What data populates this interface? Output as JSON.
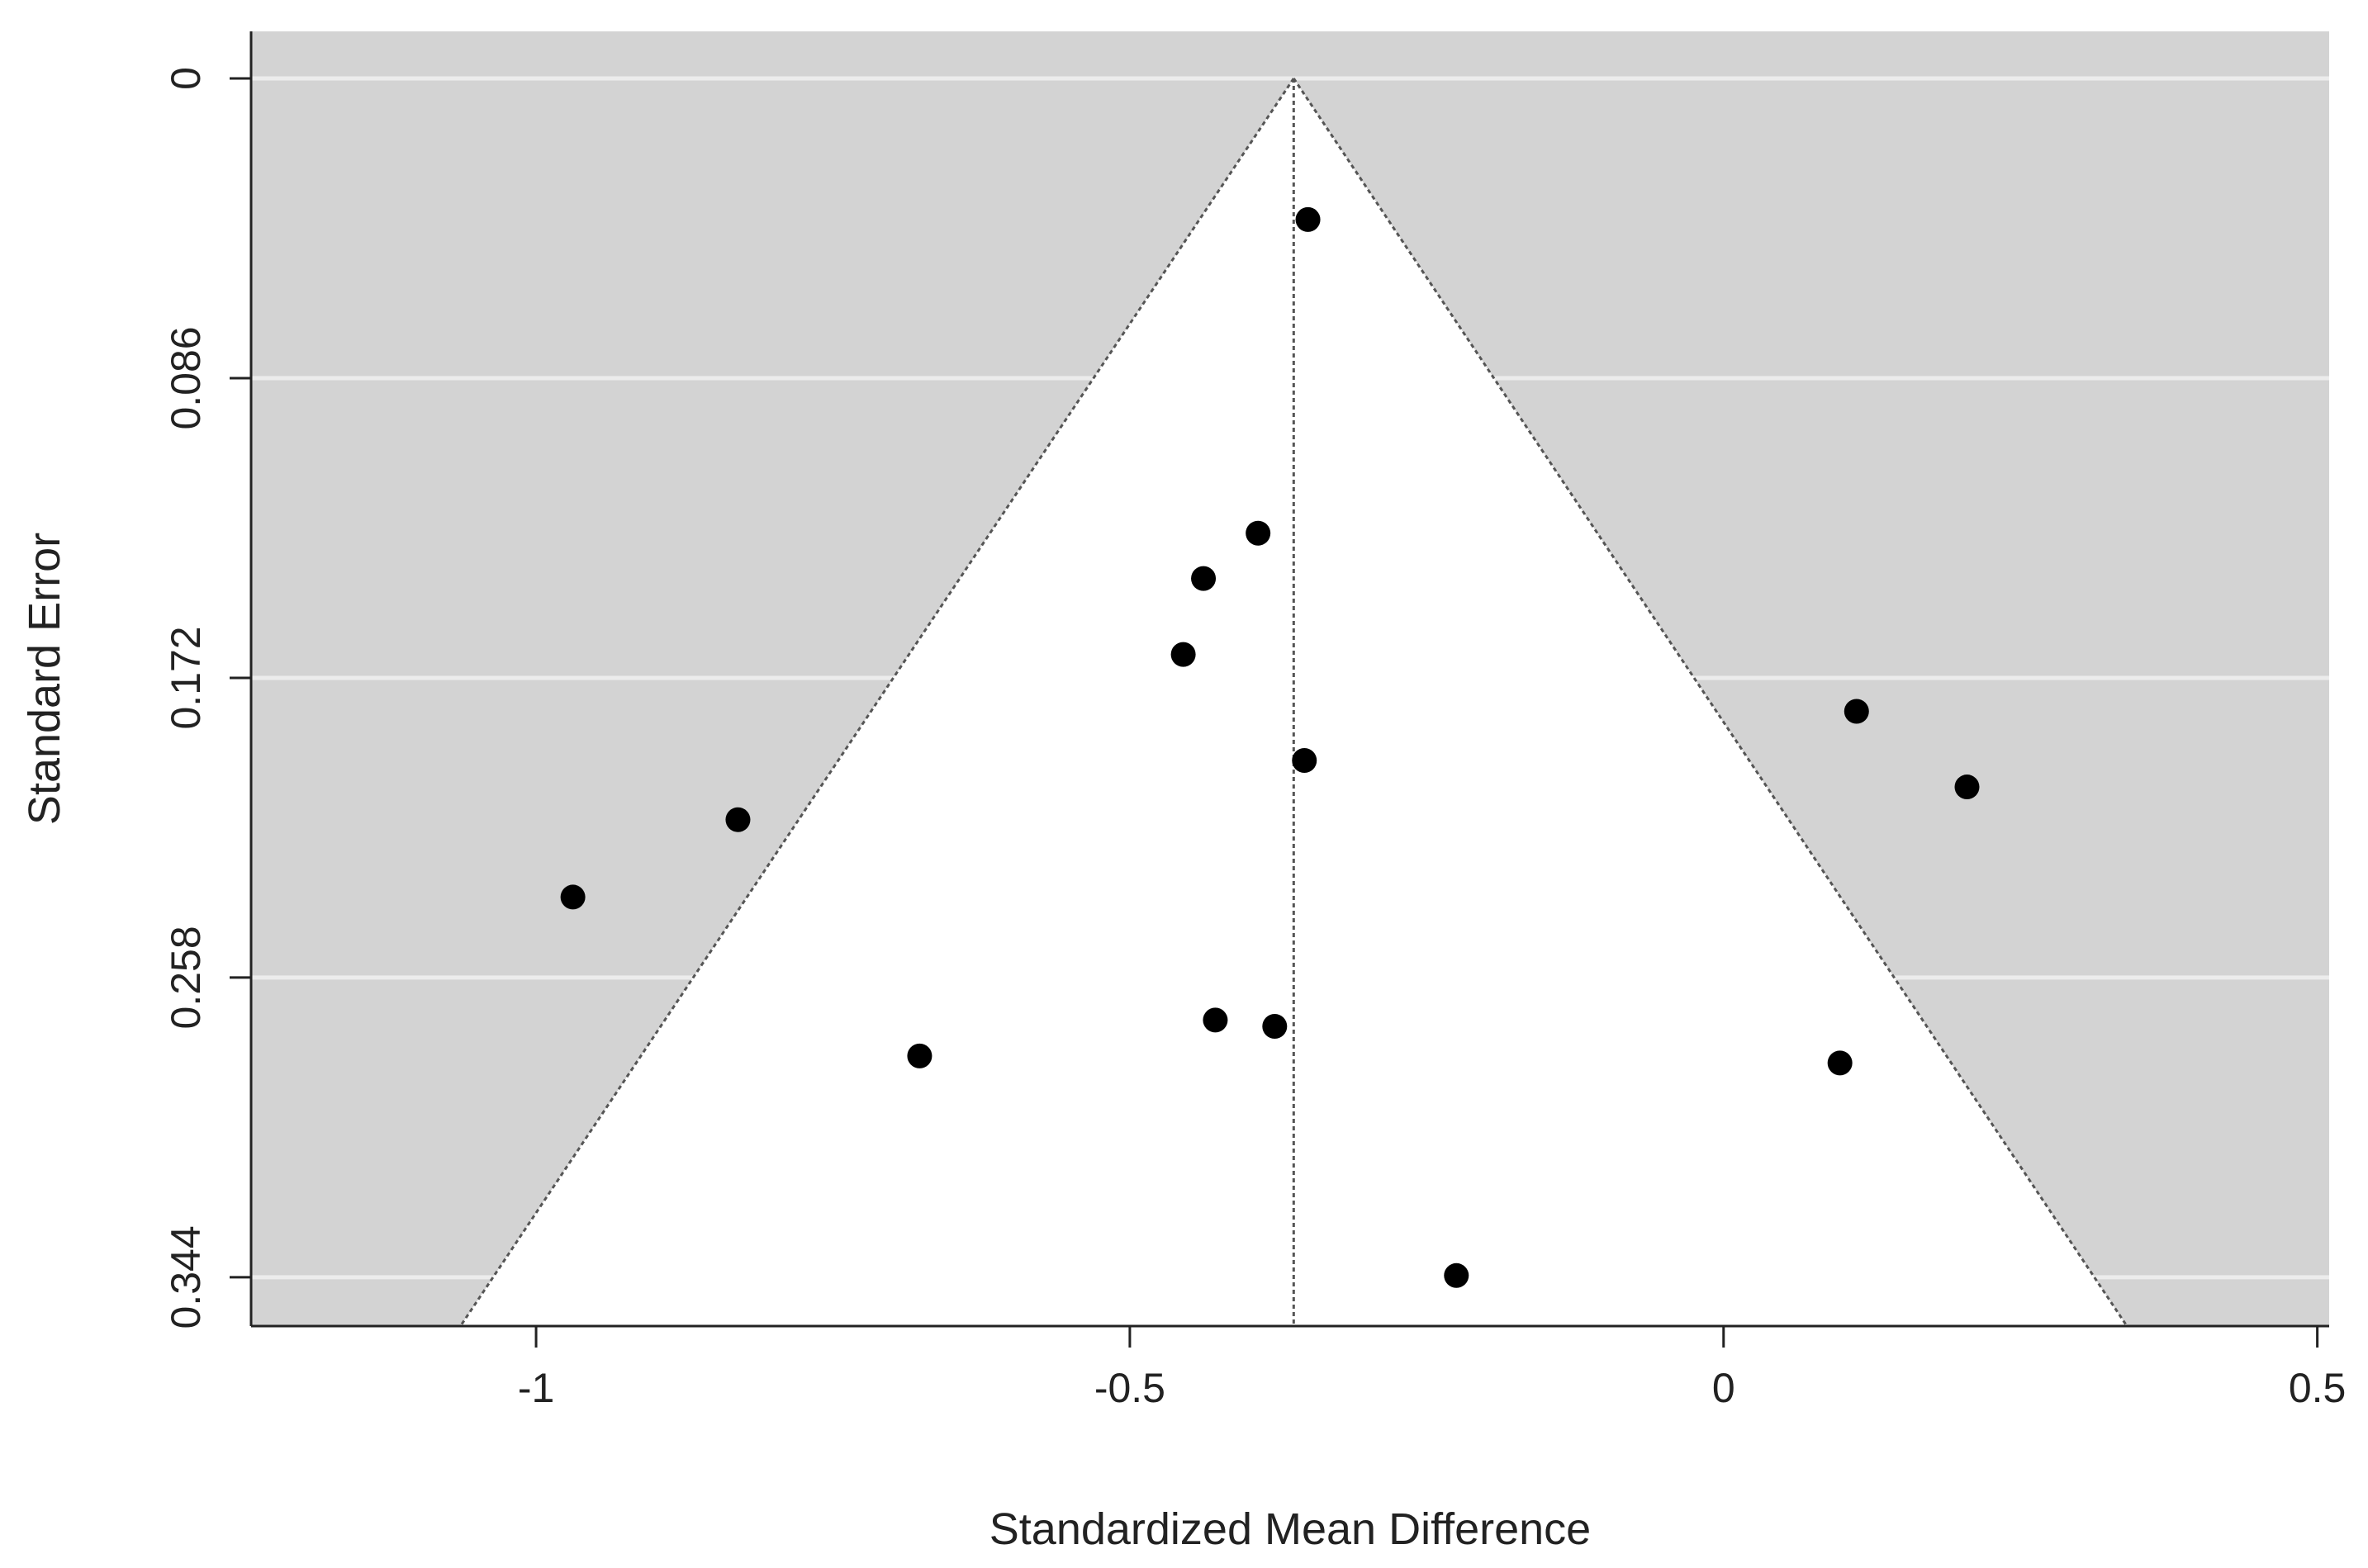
{
  "chart_data": {
    "type": "scatter",
    "title": "",
    "xlabel": "Standardized Mean Difference",
    "ylabel": "Standard Error",
    "xlim": [
      -1.24,
      0.51
    ],
    "ylim": [
      0.358,
      -0.0135
    ],
    "y_reversed": true,
    "x_ticks": [
      {
        "value": -1,
        "label": "-1"
      },
      {
        "value": -0.5,
        "label": "-0.5"
      },
      {
        "value": 0,
        "label": "0"
      },
      {
        "value": 0.5,
        "label": "0.5"
      }
    ],
    "y_ticks": [
      {
        "value": 0,
        "label": "0"
      },
      {
        "value": 0.086,
        "label": "0.086"
      },
      {
        "value": 0.172,
        "label": "0.172"
      },
      {
        "value": 0.258,
        "label": "0.258"
      },
      {
        "value": 0.344,
        "label": "0.344"
      }
    ],
    "grid": "horizontal",
    "pooled_estimate": -0.362,
    "funnel_z": 1.96,
    "colors": {
      "background": "#d3d3d3",
      "funnel": "#ffffff",
      "gridline": "#ececec",
      "points": "#000000",
      "lines": "#555555",
      "axis": "#222222"
    },
    "points": [
      {
        "x": -0.35,
        "y": 0.0405
      },
      {
        "x": -0.392,
        "y": 0.1305
      },
      {
        "x": -0.438,
        "y": 0.1435
      },
      {
        "x": -0.455,
        "y": 0.1653
      },
      {
        "x": 0.112,
        "y": 0.1816
      },
      {
        "x": -0.353,
        "y": 0.1957
      },
      {
        "x": 0.205,
        "y": 0.2033
      },
      {
        "x": -0.83,
        "y": 0.2127
      },
      {
        "x": -0.969,
        "y": 0.2349
      },
      {
        "x": -0.428,
        "y": 0.2702
      },
      {
        "x": -0.378,
        "y": 0.272
      },
      {
        "x": -0.677,
        "y": 0.2805
      },
      {
        "x": 0.098,
        "y": 0.2825
      },
      {
        "x": -0.225,
        "y": 0.3435
      }
    ]
  }
}
